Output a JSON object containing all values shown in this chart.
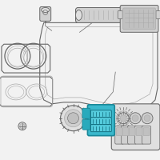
{
  "bg_color": "#f2f2f2",
  "highlight_color": "#3ab8cc",
  "line_color": "#888888",
  "dark_color": "#666666",
  "outline_color": "#aaaaaa",
  "fill_light": "#e0e0e0",
  "fill_mid": "#d0d0d0",
  "fill_dark": "#c0c0c0"
}
